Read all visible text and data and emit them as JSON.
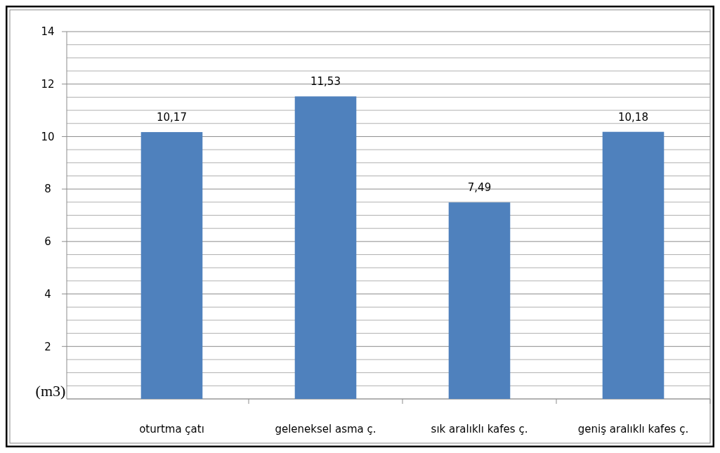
{
  "chart_data": {
    "type": "bar",
    "ylabel": "(m3)",
    "categories": [
      "oturtma çatı",
      "geleneksel asma ç.",
      "sık aralıklı kafes ç.",
      "geniş aralıklı kafes ç."
    ],
    "values": [
      10.17,
      11.53,
      7.49,
      10.18
    ],
    "value_labels": [
      "10,17",
      "11,53",
      "7,49",
      "10,18"
    ],
    "color": "#4f81bd",
    "ylim": [
      0,
      14
    ],
    "yticks": [
      {
        "value": 0,
        "label": null
      },
      {
        "value": 0.5,
        "label": null
      },
      {
        "value": 1,
        "label": null
      },
      {
        "value": 1.5,
        "label": null
      },
      2,
      {
        "value": 2.5,
        "label": null
      },
      {
        "value": 3,
        "label": null
      },
      {
        "value": 3.5,
        "label": null
      },
      4,
      {
        "value": 4.5,
        "label": null
      },
      {
        "value": 5,
        "label": null
      },
      {
        "value": 5.5,
        "label": null
      },
      6,
      {
        "value": 6.5,
        "label": null
      },
      {
        "value": 7,
        "label": null
      },
      {
        "value": 7.5,
        "label": null
      },
      8,
      {
        "value": 8.5,
        "label": null
      },
      {
        "value": 9,
        "label": null
      },
      {
        "value": 9.5,
        "label": null
      },
      10,
      {
        "value": 10.5,
        "label": null
      },
      {
        "value": 11,
        "label": null
      },
      {
        "value": 11.5,
        "label": null
      },
      12,
      {
        "value": 12.5,
        "label": null
      },
      {
        "value": 13,
        "label": null
      },
      {
        "value": 13.5,
        "label": null
      },
      14
    ],
    "grid": true
  }
}
